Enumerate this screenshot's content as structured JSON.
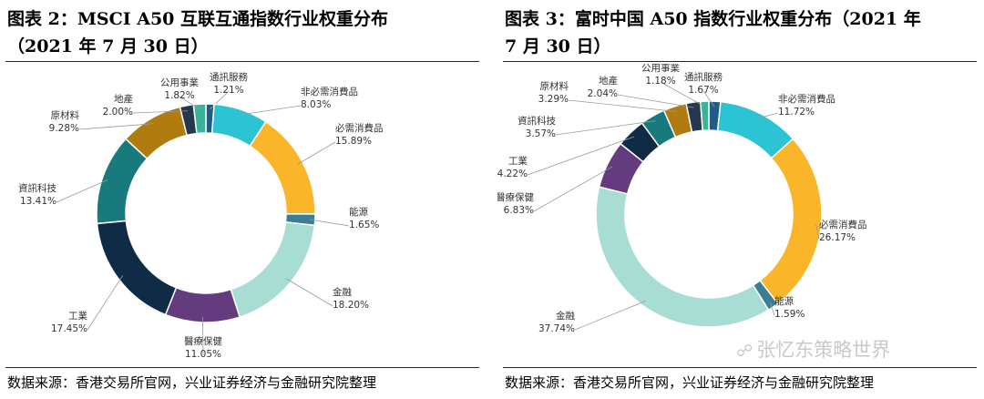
{
  "chart_data": [
    {
      "type": "pie",
      "title_line1": "图表 2：MSCI A50 互联互通指数行业权重分布",
      "title_line2": "（2021 年 7 月 30 日）",
      "source": "数据来源：香港交易所官网，兴业证券经济与金融研究院整理",
      "slices": [
        {
          "label": "通訊服務",
          "value": 1.21,
          "value_text": "1.21%",
          "color": "#1f5c8c"
        },
        {
          "label": "非必需消費品",
          "value": 8.03,
          "value_text": "8.03%",
          "color": "#2cc3d4"
        },
        {
          "label": "必需消費品",
          "value": 15.89,
          "value_text": "15.89%",
          "color": "#fbb52a"
        },
        {
          "label": "能源",
          "value": 1.65,
          "value_text": "1.65%",
          "color": "#3d7d94"
        },
        {
          "label": "金融",
          "value": 18.2,
          "value_text": "18.20%",
          "color": "#a8ddd3"
        },
        {
          "label": "醫療保健",
          "value": 11.05,
          "value_text": "11.05%",
          "color": "#633b7e"
        },
        {
          "label": "工業",
          "value": 17.45,
          "value_text": "17.45%",
          "color": "#0f2b46"
        },
        {
          "label": "資訊科技",
          "value": 13.41,
          "value_text": "13.41%",
          "color": "#197a7e"
        },
        {
          "label": "原材料",
          "value": 9.28,
          "value_text": "9.28%",
          "color": "#b07c10"
        },
        {
          "label": "地產",
          "value": 2.0,
          "value_text": "2.00%",
          "color": "#25384d"
        },
        {
          "label": "公用事業",
          "value": 1.82,
          "value_text": "1.82%",
          "color": "#3ab39a"
        }
      ]
    },
    {
      "type": "pie",
      "title_line1": "图表 3：富时中国 A50 指数行业权重分布（2021 年",
      "title_line2": "7 月 30 日）",
      "source": "数据来源：香港交易所官网，兴业证券经济与金融研究院整理",
      "slices": [
        {
          "label": "通訊服務",
          "value": 1.67,
          "value_text": "1.67%",
          "color": "#1f5c8c"
        },
        {
          "label": "非必需消費品",
          "value": 11.72,
          "value_text": "11.72%",
          "color": "#2cc3d4"
        },
        {
          "label": "必需消費品",
          "value": 26.17,
          "value_text": "26.17%",
          "color": "#fbb52a"
        },
        {
          "label": "能源",
          "value": 1.59,
          "value_text": "1.59%",
          "color": "#3d7d94"
        },
        {
          "label": "金融",
          "value": 37.74,
          "value_text": "37.74%",
          "color": "#a8ddd3"
        },
        {
          "label": "醫療保健",
          "value": 6.83,
          "value_text": "6.83%",
          "color": "#633b7e"
        },
        {
          "label": "工業",
          "value": 4.22,
          "value_text": "4.22%",
          "color": "#0f2b46"
        },
        {
          "label": "資訊科技",
          "value": 3.57,
          "value_text": "3.57%",
          "color": "#197a7e"
        },
        {
          "label": "原材料",
          "value": 3.29,
          "value_text": "3.29%",
          "color": "#b07c10"
        },
        {
          "label": "地產",
          "value": 2.04,
          "value_text": "2.04%",
          "color": "#25384d"
        },
        {
          "label": "公用事業",
          "value": 1.18,
          "value_text": "1.18%",
          "color": "#3ab39a"
        }
      ]
    }
  ],
  "watermark": {
    "icon": "wechat-icon",
    "text": "张忆东策略世界"
  }
}
